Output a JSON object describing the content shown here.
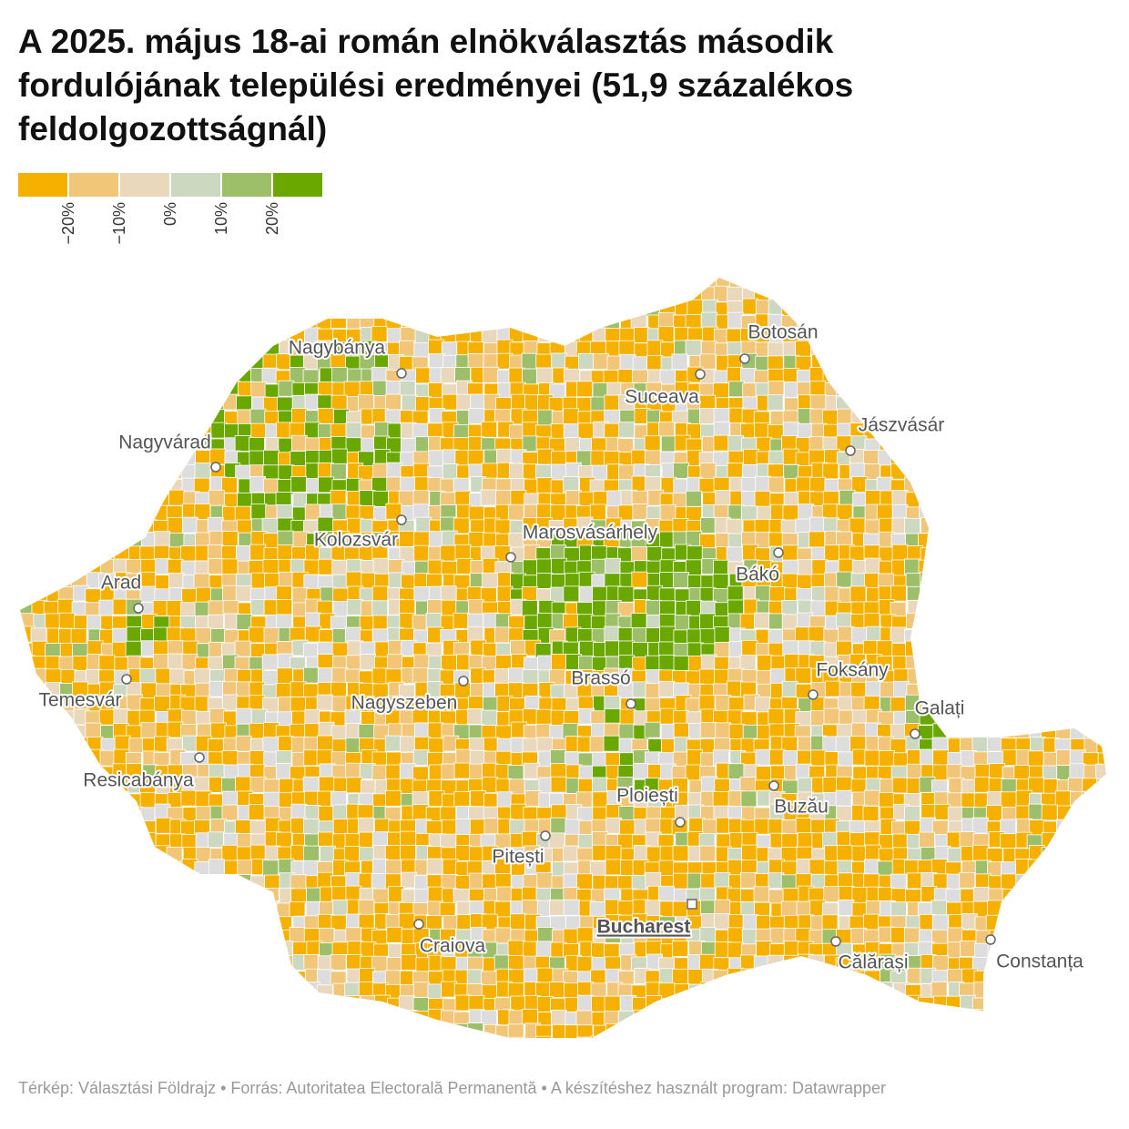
{
  "header": {
    "title": "A 2025. május 18-ai román elnökválasztás második fordulójának települési eredményei (51,9 százalékos feldolgozottságnál)"
  },
  "legend": {
    "colors": [
      "#f5b000",
      "#f2c678",
      "#ead8bc",
      "#ccd9c0",
      "#9dbf6a",
      "#6aa800"
    ],
    "labels": [
      "−20%",
      "−10%",
      "0%",
      "10%",
      "20%"
    ]
  },
  "cities": [
    {
      "name": "Nagybánya"
    },
    {
      "name": "Botosán"
    },
    {
      "name": "Suceava"
    },
    {
      "name": "Jászvásár"
    },
    {
      "name": "Nagyvárad"
    },
    {
      "name": "Kolozsvár"
    },
    {
      "name": "Marosvásárhely"
    },
    {
      "name": "Bákó"
    },
    {
      "name": "Arad"
    },
    {
      "name": "Foksány"
    },
    {
      "name": "Brassó"
    },
    {
      "name": "Temesvár"
    },
    {
      "name": "Nagyszeben"
    },
    {
      "name": "Galați"
    },
    {
      "name": "Resicabánya"
    },
    {
      "name": "Ploiești"
    },
    {
      "name": "Buzău"
    },
    {
      "name": "Pitești"
    },
    {
      "name": "Bucharest"
    },
    {
      "name": "Craiova"
    },
    {
      "name": "Călărași"
    },
    {
      "name": "Constanța"
    }
  ],
  "footer": {
    "text": "Térkép: Választási Földrajz • Forrás: Autoritatea Electorală Permanentă • A készítéshez használt program: Datawrapper"
  }
}
